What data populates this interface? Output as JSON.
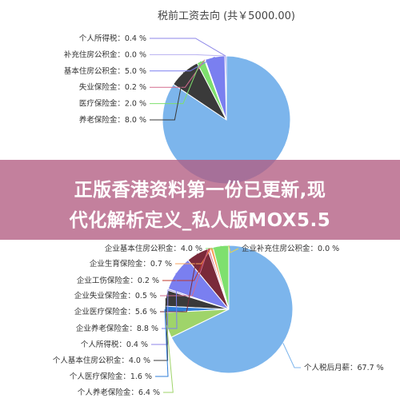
{
  "chart_data": [
    {
      "type": "pie",
      "title": "税前工资去向 (共￥5000.00)",
      "slices": [
        {
          "label": "个人所得税",
          "value": 0.4,
          "display": "0.4 %",
          "color": "#8c86e8"
        },
        {
          "label": "补充住房公积金",
          "value": 0.0,
          "display": "0.0 %",
          "color": "#b8b0f0"
        },
        {
          "label": "基本住房公积金",
          "value": 5.0,
          "display": "5.0 %",
          "color": "#7a7ff0"
        },
        {
          "label": "失业保险金",
          "value": 0.2,
          "display": "0.2 %",
          "color": "#d36b8e"
        },
        {
          "label": "医疗保险金",
          "value": 2.0,
          "display": "2.0 %",
          "color": "#7ee06e"
        },
        {
          "label": "养老保险金",
          "value": 8.0,
          "display": "8.0 %",
          "color": "#3a3a3a"
        },
        {
          "label": "",
          "value": 84.4,
          "display": "",
          "color": "#7cb5ec"
        }
      ]
    },
    {
      "type": "pie",
      "title": "",
      "slices": [
        {
          "label": "企业补充住房公积金",
          "value": 0.0,
          "display": "0.0 %",
          "color": "#e4d354"
        },
        {
          "label": "企业基本住房公积金",
          "value": 4.0,
          "display": "4.0 %",
          "color": "#7ee06e"
        },
        {
          "label": "企业生育保险金",
          "value": 0.7,
          "display": "0.7 %",
          "color": "#f7a35c"
        },
        {
          "label": "企业工伤保险金",
          "value": 0.2,
          "display": "0.2 %",
          "color": "#c0392b"
        },
        {
          "label": "企业失业保险金",
          "value": 0.5,
          "display": "0.5 %",
          "color": "#d36b8e"
        },
        {
          "label": "企业医疗保险金",
          "value": 5.6,
          "display": "5.6 %",
          "color": "#7a2a3a"
        },
        {
          "label": "企业养老保险金",
          "value": 8.8,
          "display": "8.8 %",
          "color": "#7a7ff0"
        },
        {
          "label": "个人所得税",
          "value": 0.4,
          "display": "0.4 %",
          "color": "#8c86e8"
        },
        {
          "label": "个人基本住房公积金",
          "value": 4.0,
          "display": "4.0 %",
          "color": "#3a3a3a"
        },
        {
          "label": "个人医疗保险金",
          "value": 1.6,
          "display": "1.6 %",
          "color": "#2f7ed8"
        },
        {
          "label": "个人养老保险金",
          "value": 6.4,
          "display": "6.4 %",
          "color": "#9fd46a"
        },
        {
          "label": "个人税后月薪",
          "value": 67.7,
          "display": "67.7 %",
          "color": "#7cb5ec"
        }
      ]
    }
  ],
  "banner": {
    "line1": "正版香港资料第一份已更新,现",
    "line2": "代化解析定义_私人版MOX5.5"
  }
}
